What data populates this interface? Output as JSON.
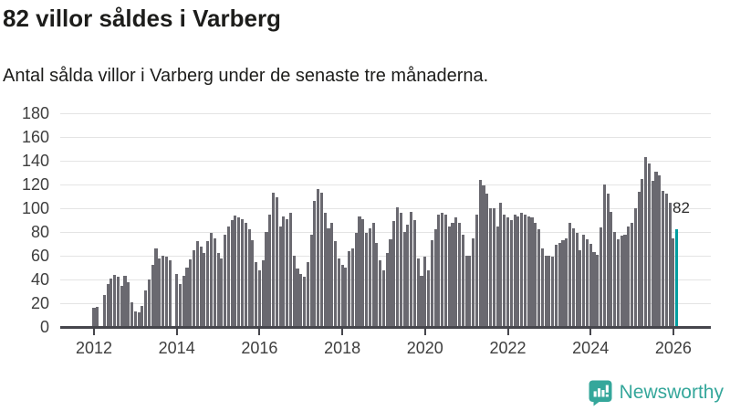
{
  "header": {
    "title": "82 villor såldes i Varberg",
    "subtitle": "Antal sålda villor i Varberg under de senaste tre månaderna."
  },
  "chart_data": {
    "type": "bar",
    "title": "82 villor såldes i Varberg",
    "ylabel": "",
    "xlabel": "",
    "start_month": "2012-01",
    "end_month": "2026-02",
    "ylim": [
      0,
      180
    ],
    "yticks": [
      0,
      20,
      40,
      60,
      80,
      100,
      120,
      140,
      160,
      180
    ],
    "xtick_labels": [
      "2012",
      "2014",
      "2016",
      "2018",
      "2020",
      "2022",
      "2024",
      "2026"
    ],
    "grid": "horizontal",
    "legend": "none",
    "bar_color": "#6A6970",
    "highlight_color": "#009EA0",
    "values": [
      16,
      17,
      0,
      27,
      36,
      41,
      44,
      42,
      35,
      43,
      38,
      21,
      13,
      12,
      18,
      31,
      40,
      52,
      66,
      58,
      60,
      59,
      56,
      0,
      45,
      36,
      43,
      50,
      57,
      65,
      72,
      68,
      62,
      72,
      79,
      75,
      62,
      58,
      78,
      85,
      90,
      94,
      92,
      91,
      88,
      82,
      73,
      55,
      48,
      56,
      80,
      95,
      113,
      109,
      85,
      93,
      91,
      96,
      60,
      49,
      45,
      42,
      55,
      78,
      106,
      116,
      113,
      96,
      83,
      88,
      72,
      58,
      52,
      50,
      64,
      66,
      79,
      93,
      91,
      79,
      83,
      88,
      71,
      56,
      48,
      62,
      74,
      89,
      101,
      96,
      80,
      86,
      97,
      90,
      58,
      43,
      59,
      48,
      73,
      82,
      95,
      96,
      95,
      85,
      88,
      92,
      88,
      78,
      60,
      60,
      75,
      95,
      124,
      119,
      112,
      100,
      100,
      85,
      105,
      95,
      92,
      90,
      95,
      93,
      96,
      95,
      93,
      92,
      88,
      82,
      66,
      60,
      60,
      59,
      69,
      71,
      73,
      75,
      88,
      83,
      79,
      65,
      78,
      74,
      70,
      63,
      61,
      84,
      120,
      112,
      97,
      80,
      74,
      77,
      78,
      85,
      88,
      100,
      114,
      125,
      143,
      138,
      123,
      131,
      128,
      115,
      112,
      105,
      75,
      82
    ],
    "highlight": {
      "index": 169,
      "value": 82,
      "label": "82"
    }
  },
  "branding": {
    "name": "Newsworthy",
    "color": "#35a79b"
  }
}
